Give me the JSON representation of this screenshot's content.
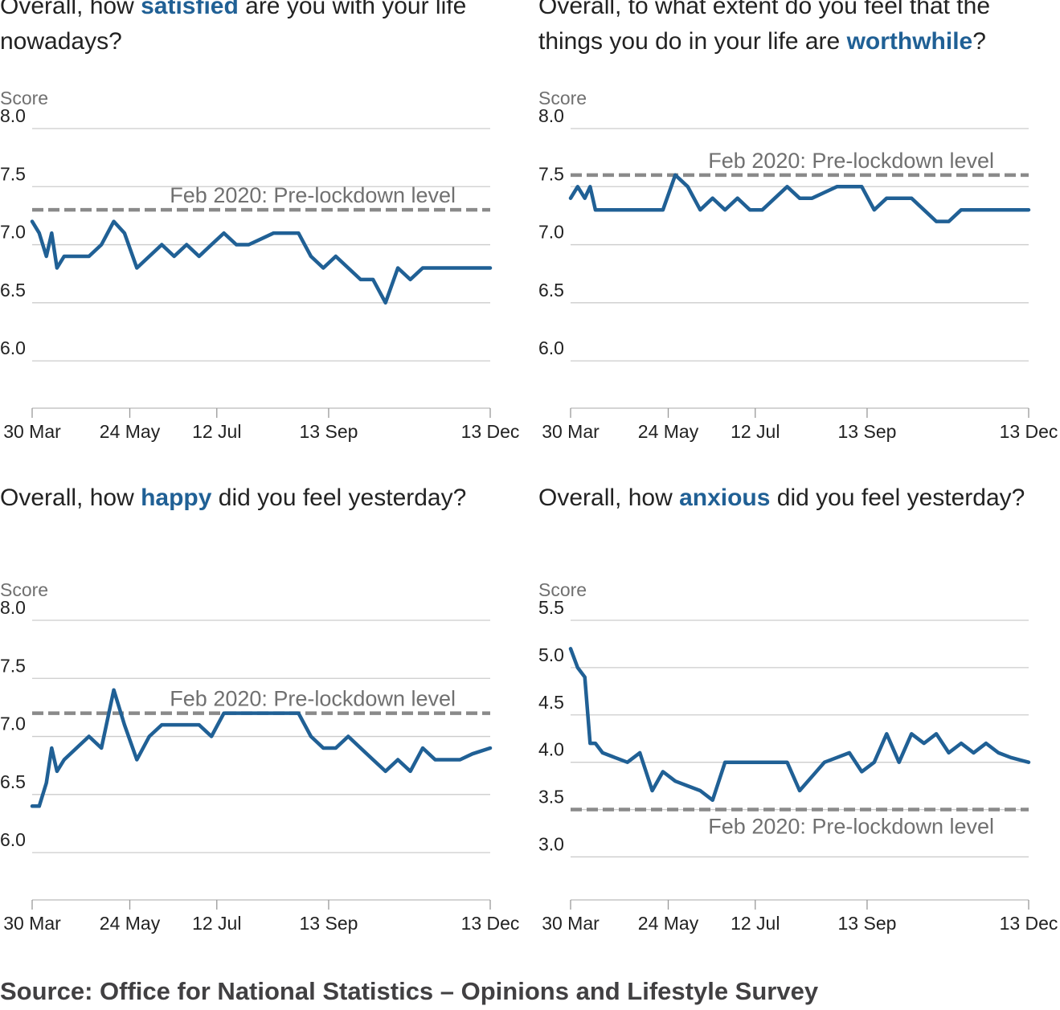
{
  "source": "Source: Office for National Statistics – Opinions and Lifestyle Survey",
  "colors": {
    "series": "#206095",
    "reference": "#8a8a8a",
    "grid": "#cccccc",
    "keyword": "#206095"
  },
  "panels": [
    {
      "title_pre": "Overall, how ",
      "title_kw": "satisfied",
      "title_post": " are you with your life nowadays?"
    },
    {
      "title_pre": "Overall, to what extent do you feel that the things you do in your life are ",
      "title_kw": "worthwhile",
      "title_post": "?"
    },
    {
      "title_pre": "Overall, how ",
      "title_kw": "happy",
      "title_post": " did you feel yesterday?"
    },
    {
      "title_pre": "Overall, how ",
      "title_kw": "anxious",
      "title_post": " did you feel yesterday?"
    }
  ],
  "chart_data": [
    {
      "type": "line",
      "ylabel": "Score",
      "ylim": [
        5.8,
        8.0
      ],
      "yticks": [
        "6.0",
        "6.5",
        "7.0",
        "7.5",
        "8.0"
      ],
      "x_range": [
        "2020-03-30",
        "2020-12-13"
      ],
      "x_ticks": [
        {
          "date": "2020-03-30",
          "label": "30 Mar"
        },
        {
          "date": "2020-05-24",
          "label": "24 May"
        },
        {
          "date": "2020-07-12",
          "label": "12 Jul"
        },
        {
          "date": "2020-09-13",
          "label": "13 Sep"
        },
        {
          "date": "2020-12-13",
          "label": "13 Dec"
        }
      ],
      "reference": {
        "value": 7.3,
        "label": "Feb 2020: Pre-lockdown level",
        "label_position": "above"
      },
      "series": [
        {
          "points": [
            [
              "2020-03-30",
              7.2
            ],
            [
              "2020-04-03",
              7.1
            ],
            [
              "2020-04-07",
              6.9
            ],
            [
              "2020-04-10",
              7.1
            ],
            [
              "2020-04-13",
              6.8
            ],
            [
              "2020-04-17",
              6.9
            ],
            [
              "2020-04-24",
              6.9
            ],
            [
              "2020-05-01",
              6.9
            ],
            [
              "2020-05-08",
              7.0
            ],
            [
              "2020-05-15",
              7.2
            ],
            [
              "2020-05-21",
              7.1
            ],
            [
              "2020-05-28",
              6.8
            ],
            [
              "2020-06-04",
              6.9
            ],
            [
              "2020-06-11",
              7.0
            ],
            [
              "2020-06-18",
              6.9
            ],
            [
              "2020-06-25",
              7.0
            ],
            [
              "2020-07-02",
              6.9
            ],
            [
              "2020-07-09",
              7.0
            ],
            [
              "2020-07-16",
              7.1
            ],
            [
              "2020-07-23",
              7.0
            ],
            [
              "2020-07-30",
              7.0
            ],
            [
              "2020-08-06",
              7.05
            ],
            [
              "2020-08-13",
              7.1
            ],
            [
              "2020-08-20",
              7.1
            ],
            [
              "2020-08-27",
              7.1
            ],
            [
              "2020-09-03",
              6.9
            ],
            [
              "2020-09-10",
              6.8
            ],
            [
              "2020-09-17",
              6.9
            ],
            [
              "2020-09-24",
              6.8
            ],
            [
              "2020-10-01",
              6.7
            ],
            [
              "2020-10-08",
              6.7
            ],
            [
              "2020-10-15",
              6.5
            ],
            [
              "2020-10-22",
              6.8
            ],
            [
              "2020-10-29",
              6.7
            ],
            [
              "2020-11-05",
              6.8
            ],
            [
              "2020-11-12",
              6.8
            ],
            [
              "2020-11-19",
              6.8
            ],
            [
              "2020-11-26",
              6.8
            ],
            [
              "2020-12-03",
              6.8
            ],
            [
              "2020-12-13",
              6.8
            ]
          ]
        }
      ]
    },
    {
      "type": "line",
      "ylabel": "Score",
      "ylim": [
        5.8,
        8.0
      ],
      "yticks": [
        "6.0",
        "6.5",
        "7.0",
        "7.5",
        "8.0"
      ],
      "x_range": [
        "2020-03-30",
        "2020-12-13"
      ],
      "x_ticks": [
        {
          "date": "2020-03-30",
          "label": "30 Mar"
        },
        {
          "date": "2020-05-24",
          "label": "24 May"
        },
        {
          "date": "2020-07-12",
          "label": "12 Jul"
        },
        {
          "date": "2020-09-13",
          "label": "13 Sep"
        },
        {
          "date": "2020-12-13",
          "label": "13 Dec"
        }
      ],
      "reference": {
        "value": 7.6,
        "label": "Feb 2020: Pre-lockdown level",
        "label_position": "above"
      },
      "series": [
        {
          "points": [
            [
              "2020-03-30",
              7.4
            ],
            [
              "2020-04-03",
              7.5
            ],
            [
              "2020-04-07",
              7.4
            ],
            [
              "2020-04-10",
              7.5
            ],
            [
              "2020-04-13",
              7.3
            ],
            [
              "2020-04-17",
              7.3
            ],
            [
              "2020-04-24",
              7.3
            ],
            [
              "2020-05-01",
              7.3
            ],
            [
              "2020-05-08",
              7.3
            ],
            [
              "2020-05-15",
              7.3
            ],
            [
              "2020-05-21",
              7.3
            ],
            [
              "2020-05-28",
              7.6
            ],
            [
              "2020-06-04",
              7.5
            ],
            [
              "2020-06-11",
              7.3
            ],
            [
              "2020-06-18",
              7.4
            ],
            [
              "2020-06-25",
              7.3
            ],
            [
              "2020-07-02",
              7.4
            ],
            [
              "2020-07-09",
              7.3
            ],
            [
              "2020-07-16",
              7.3
            ],
            [
              "2020-07-23",
              7.4
            ],
            [
              "2020-07-30",
              7.5
            ],
            [
              "2020-08-06",
              7.4
            ],
            [
              "2020-08-13",
              7.4
            ],
            [
              "2020-08-20",
              7.45
            ],
            [
              "2020-08-27",
              7.5
            ],
            [
              "2020-09-03",
              7.5
            ],
            [
              "2020-09-10",
              7.5
            ],
            [
              "2020-09-17",
              7.3
            ],
            [
              "2020-09-24",
              7.4
            ],
            [
              "2020-10-01",
              7.4
            ],
            [
              "2020-10-08",
              7.4
            ],
            [
              "2020-10-15",
              7.3
            ],
            [
              "2020-10-22",
              7.2
            ],
            [
              "2020-10-29",
              7.2
            ],
            [
              "2020-11-05",
              7.3
            ],
            [
              "2020-11-12",
              7.3
            ],
            [
              "2020-11-19",
              7.3
            ],
            [
              "2020-11-26",
              7.3
            ],
            [
              "2020-12-03",
              7.3
            ],
            [
              "2020-12-13",
              7.3
            ]
          ]
        }
      ]
    },
    {
      "type": "line",
      "ylabel": "Score",
      "ylim": [
        5.8,
        8.0
      ],
      "yticks": [
        "6.0",
        "6.5",
        "7.0",
        "7.5",
        "8.0"
      ],
      "x_range": [
        "2020-03-30",
        "2020-12-13"
      ],
      "x_ticks": [
        {
          "date": "2020-03-30",
          "label": "30 Mar"
        },
        {
          "date": "2020-05-24",
          "label": "24 May"
        },
        {
          "date": "2020-07-12",
          "label": "12 Jul"
        },
        {
          "date": "2020-09-13",
          "label": "13 Sep"
        },
        {
          "date": "2020-12-13",
          "label": "13 Dec"
        }
      ],
      "reference": {
        "value": 7.2,
        "label": "Feb 2020: Pre-lockdown level",
        "label_position": "above"
      },
      "series": [
        {
          "points": [
            [
              "2020-03-30",
              6.4
            ],
            [
              "2020-04-03",
              6.4
            ],
            [
              "2020-04-07",
              6.6
            ],
            [
              "2020-04-10",
              6.9
            ],
            [
              "2020-04-13",
              6.7
            ],
            [
              "2020-04-17",
              6.8
            ],
            [
              "2020-04-24",
              6.9
            ],
            [
              "2020-05-01",
              7.0
            ],
            [
              "2020-05-08",
              6.9
            ],
            [
              "2020-05-15",
              7.4
            ],
            [
              "2020-05-21",
              7.1
            ],
            [
              "2020-05-28",
              6.8
            ],
            [
              "2020-06-04",
              7.0
            ],
            [
              "2020-06-11",
              7.1
            ],
            [
              "2020-06-18",
              7.1
            ],
            [
              "2020-06-25",
              7.1
            ],
            [
              "2020-07-02",
              7.1
            ],
            [
              "2020-07-09",
              7.0
            ],
            [
              "2020-07-16",
              7.2
            ],
            [
              "2020-07-23",
              7.2
            ],
            [
              "2020-07-30",
              7.2
            ],
            [
              "2020-08-06",
              7.2
            ],
            [
              "2020-08-13",
              7.2
            ],
            [
              "2020-08-20",
              7.2
            ],
            [
              "2020-08-27",
              7.2
            ],
            [
              "2020-09-03",
              7.0
            ],
            [
              "2020-09-10",
              6.9
            ],
            [
              "2020-09-17",
              6.9
            ],
            [
              "2020-09-24",
              7.0
            ],
            [
              "2020-10-01",
              6.9
            ],
            [
              "2020-10-08",
              6.8
            ],
            [
              "2020-10-15",
              6.7
            ],
            [
              "2020-10-22",
              6.8
            ],
            [
              "2020-10-29",
              6.7
            ],
            [
              "2020-11-05",
              6.9
            ],
            [
              "2020-11-12",
              6.8
            ],
            [
              "2020-11-19",
              6.8
            ],
            [
              "2020-11-26",
              6.8
            ],
            [
              "2020-12-03",
              6.85
            ],
            [
              "2020-12-13",
              6.9
            ]
          ]
        }
      ]
    },
    {
      "type": "line",
      "ylabel": "Score",
      "ylim": [
        2.8,
        5.5
      ],
      "yticks": [
        "3.0",
        "3.5",
        "4.0",
        "4.5",
        "5.0",
        "5.5"
      ],
      "x_range": [
        "2020-03-30",
        "2020-12-13"
      ],
      "x_ticks": [
        {
          "date": "2020-03-30",
          "label": "30 Mar"
        },
        {
          "date": "2020-05-24",
          "label": "24 May"
        },
        {
          "date": "2020-07-12",
          "label": "12 Jul"
        },
        {
          "date": "2020-09-13",
          "label": "13 Sep"
        },
        {
          "date": "2020-12-13",
          "label": "13 Dec"
        }
      ],
      "reference": {
        "value": 3.5,
        "label": "Feb 2020: Pre-lockdown level",
        "label_position": "below"
      },
      "series": [
        {
          "points": [
            [
              "2020-03-30",
              5.2
            ],
            [
              "2020-04-03",
              5.0
            ],
            [
              "2020-04-07",
              4.9
            ],
            [
              "2020-04-10",
              4.2
            ],
            [
              "2020-04-13",
              4.2
            ],
            [
              "2020-04-17",
              4.1
            ],
            [
              "2020-04-24",
              4.05
            ],
            [
              "2020-05-01",
              4.0
            ],
            [
              "2020-05-08",
              4.1
            ],
            [
              "2020-05-15",
              3.7
            ],
            [
              "2020-05-21",
              3.9
            ],
            [
              "2020-05-28",
              3.8
            ],
            [
              "2020-06-04",
              3.75
            ],
            [
              "2020-06-11",
              3.7
            ],
            [
              "2020-06-18",
              3.6
            ],
            [
              "2020-06-25",
              4.0
            ],
            [
              "2020-07-02",
              4.0
            ],
            [
              "2020-07-09",
              4.0
            ],
            [
              "2020-07-16",
              4.0
            ],
            [
              "2020-07-23",
              4.0
            ],
            [
              "2020-07-30",
              4.0
            ],
            [
              "2020-08-06",
              3.7
            ],
            [
              "2020-08-13",
              3.85
            ],
            [
              "2020-08-20",
              4.0
            ],
            [
              "2020-08-27",
              4.05
            ],
            [
              "2020-09-03",
              4.1
            ],
            [
              "2020-09-10",
              3.9
            ],
            [
              "2020-09-17",
              4.0
            ],
            [
              "2020-09-24",
              4.3
            ],
            [
              "2020-10-01",
              4.0
            ],
            [
              "2020-10-08",
              4.3
            ],
            [
              "2020-10-15",
              4.2
            ],
            [
              "2020-10-22",
              4.3
            ],
            [
              "2020-10-29",
              4.1
            ],
            [
              "2020-11-05",
              4.2
            ],
            [
              "2020-11-12",
              4.1
            ],
            [
              "2020-11-19",
              4.2
            ],
            [
              "2020-11-26",
              4.1
            ],
            [
              "2020-12-03",
              4.05
            ],
            [
              "2020-12-13",
              4.0
            ]
          ]
        }
      ]
    }
  ]
}
